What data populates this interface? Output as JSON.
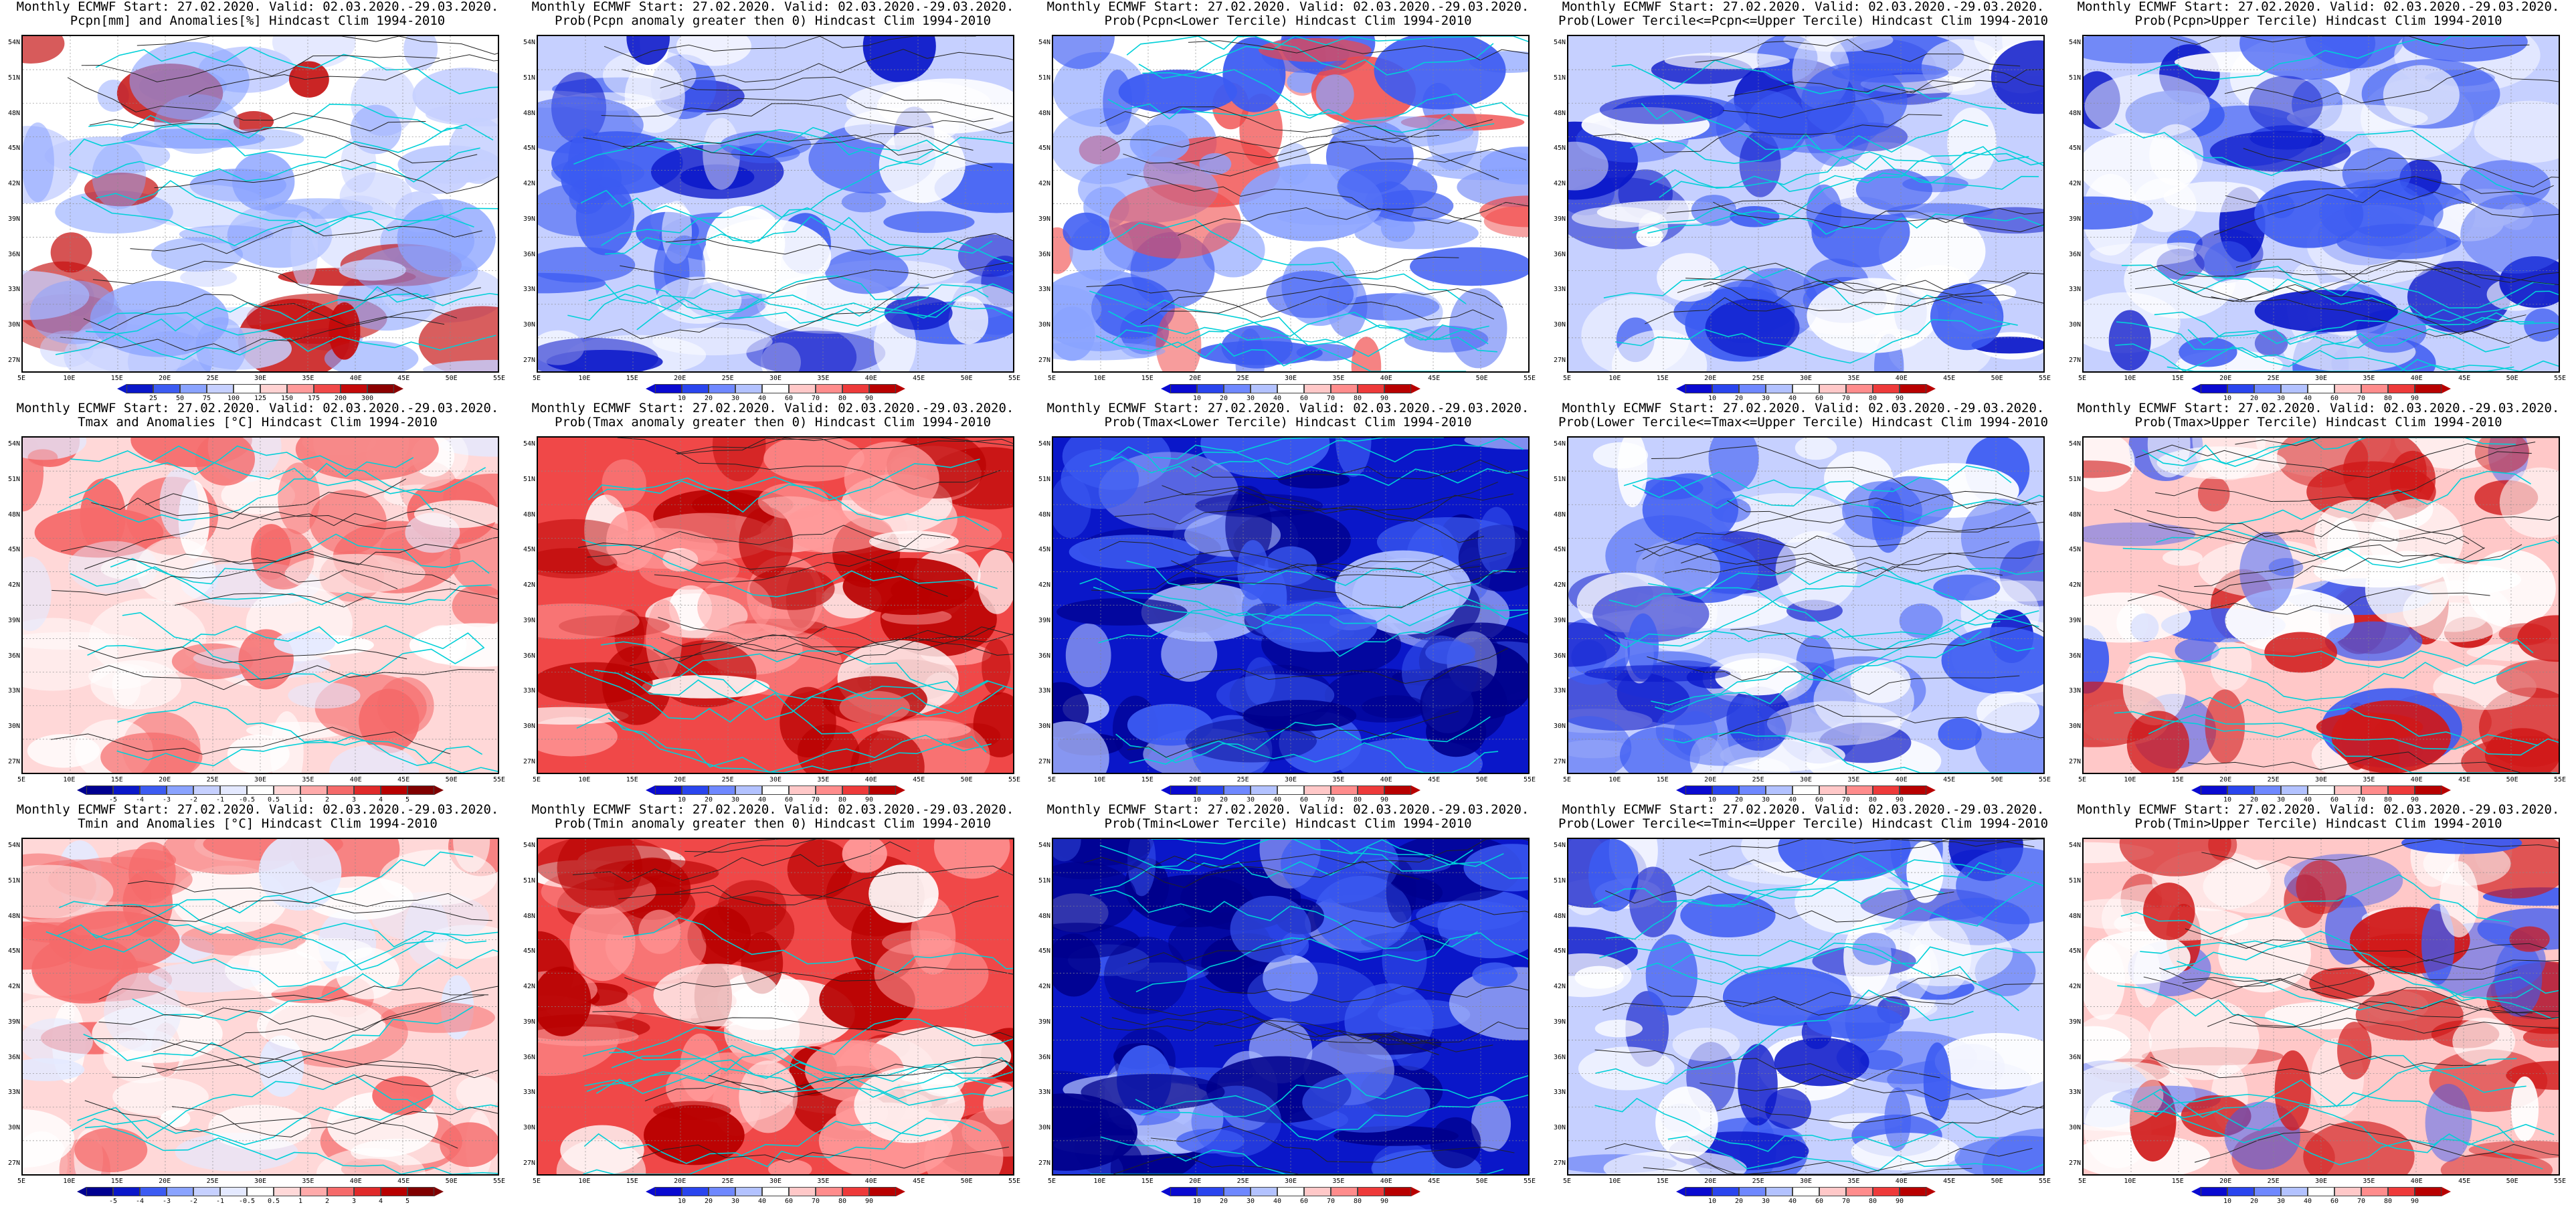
{
  "panels": [
    {
      "row": 0,
      "col": 0,
      "title1": "Monthly ECMWF Start: 27.02.2020. Valid: 02.03.2020.-29.03.2020.",
      "title2": "Pcpn[mm] and Anomalies[%] Hindcast Clim 1994-2010",
      "scheme": "precip",
      "cbar": "precip"
    },
    {
      "row": 0,
      "col": 1,
      "title1": "Monthly ECMWF Start: 27.02.2020. Valid: 02.03.2020.-29.03.2020.",
      "title2": "Prob(Pcpn anomaly greater then 0) Hindcast Clim 1994-2010",
      "scheme": "bluewhite",
      "cbar": "prob"
    },
    {
      "row": 0,
      "col": 2,
      "title1": "Monthly ECMWF Start: 27.02.2020. Valid: 02.03.2020.-29.03.2020.",
      "title2": "Prob(Pcpn<Lower Tercile) Hindcast Clim 1994-2010",
      "scheme": "bluered",
      "cbar": "prob"
    },
    {
      "row": 0,
      "col": 3,
      "title1": "Monthly ECMWF Start: 27.02.2020. Valid: 02.03.2020.-29.03.2020.",
      "title2": "Prob(Lower Tercile<=Pcpn<=Upper Tercile) Hindcast Clim 1994-2010",
      "scheme": "bluewhite",
      "cbar": "prob"
    },
    {
      "row": 0,
      "col": 4,
      "title1": "Monthly ECMWF Start: 27.02.2020. Valid: 02.03.2020.-29.03.2020.",
      "title2": "Prob(Pcpn>Upper Tercile) Hindcast Clim 1994-2010",
      "scheme": "bluewhite",
      "cbar": "prob"
    },
    {
      "row": 1,
      "col": 0,
      "title1": "Monthly ECMWF Start: 27.02.2020. Valid: 02.03.2020.-29.03.2020.",
      "title2": "Tmax and Anomalies [°C] Hindcast Clim 1994-2010",
      "scheme": "lightred",
      "cbar": "anom"
    },
    {
      "row": 1,
      "col": 1,
      "title1": "Monthly ECMWF Start: 27.02.2020. Valid: 02.03.2020.-29.03.2020.",
      "title2": "Prob(Tmax anomaly greater then 0) Hindcast Clim 1994-2010",
      "scheme": "red",
      "cbar": "prob"
    },
    {
      "row": 1,
      "col": 2,
      "title1": "Monthly ECMWF Start: 27.02.2020. Valid: 02.03.2020.-29.03.2020.",
      "title2": "Prob(Tmax<Lower Tercile) Hindcast Clim 1994-2010",
      "scheme": "darkblue",
      "cbar": "prob"
    },
    {
      "row": 1,
      "col": 3,
      "title1": "Monthly ECMWF Start: 27.02.2020. Valid: 02.03.2020.-29.03.2020.",
      "title2": "Prob(Lower Tercile<=Tmax<=Upper Tercile) Hindcast Clim 1994-2010",
      "scheme": "blue",
      "cbar": "prob"
    },
    {
      "row": 1,
      "col": 4,
      "title1": "Monthly ECMWF Start: 27.02.2020. Valid: 02.03.2020.-29.03.2020.",
      "title2": "Prob(Tmax>Upper Tercile) Hindcast Clim 1994-2010",
      "scheme": "redblue",
      "cbar": "prob"
    },
    {
      "row": 2,
      "col": 0,
      "title1": "Monthly ECMWF Start: 27.02.2020. Valid: 02.03.2020.-29.03.2020.",
      "title2": "Tmin and Anomalies [°C] Hindcast Clim 1994-2010",
      "scheme": "lightred",
      "cbar": "anom"
    },
    {
      "row": 2,
      "col": 1,
      "title1": "Monthly ECMWF Start: 27.02.2020. Valid: 02.03.2020.-29.03.2020.",
      "title2": "Prob(Tmin anomaly greater then 0) Hindcast Clim 1994-2010",
      "scheme": "red",
      "cbar": "prob"
    },
    {
      "row": 2,
      "col": 2,
      "title1": "Monthly ECMWF Start: 27.02.2020. Valid: 02.03.2020.-29.03.2020.",
      "title2": "Prob(Tmin<Lower Tercile) Hindcast Clim 1994-2010",
      "scheme": "darkblue",
      "cbar": "prob"
    },
    {
      "row": 2,
      "col": 3,
      "title1": "Monthly ECMWF Start: 27.02.2020. Valid: 02.03.2020.-29.03.2020.",
      "title2": "Prob(Lower Tercile<=Tmin<=Upper Tercile) Hindcast Clim 1994-2010",
      "scheme": "blue",
      "cbar": "prob"
    },
    {
      "row": 2,
      "col": 4,
      "title1": "Monthly ECMWF Start: 27.02.2020. Valid: 02.03.2020.-29.03.2020.",
      "title2": "Prob(Tmin>Upper Tercile) Hindcast Clim 1994-2010",
      "scheme": "redblue",
      "cbar": "prob"
    }
  ],
  "lat_labels": [
    "54N",
    "51N",
    "48N",
    "45N",
    "42N",
    "39N",
    "36N",
    "33N",
    "30N",
    "27N"
  ],
  "lon_labels": [
    "5E",
    "10E",
    "15E",
    "20E",
    "25E",
    "30E",
    "35E",
    "40E",
    "45E",
    "50E",
    "55E"
  ],
  "colorbars": {
    "precip": {
      "ticks": [
        "25",
        "50",
        "75",
        "100",
        "125",
        "150",
        "175",
        "200",
        "300"
      ],
      "colors": [
        "#0a17c9",
        "#3c5bf2",
        "#8aa3ff",
        "#c6d0ff",
        "#ffffff",
        "#ffd2d2",
        "#ff9a9a",
        "#f04848",
        "#c40a0a",
        "#8b0000"
      ]
    },
    "prob": {
      "ticks": [
        "10",
        "20",
        "30",
        "40",
        "60",
        "70",
        "80",
        "90"
      ],
      "colors": [
        "#0a0ad0",
        "#2a45ee",
        "#6f88ff",
        "#b3c2ff",
        "#ffffff",
        "#ffc8c8",
        "#ff8c8c",
        "#ee3a3a",
        "#b80000"
      ]
    },
    "anom": {
      "ticks": [
        "-5",
        "-4",
        "-3",
        "-2",
        "-1",
        "-0.5",
        "0.5",
        "1",
        "2",
        "3",
        "4",
        "5"
      ],
      "colors": [
        "#000090",
        "#0a17c9",
        "#3c5bf2",
        "#8aa3ff",
        "#c6d0ff",
        "#e4e9ff",
        "#ffffff",
        "#ffd8d8",
        "#ffaaaa",
        "#f56a6a",
        "#e02a2a",
        "#b80000",
        "#800000"
      ]
    }
  },
  "schemes": {
    "precip": {
      "base": "#ffffff",
      "a": "#8aa3ff",
      "b": "#c6d0ff",
      "c": "#c40a0a"
    },
    "bluewhite": {
      "base": "#c6d0ff",
      "a": "#3c5bf2",
      "b": "#ffffff",
      "c": "#0a17c9"
    },
    "bluered": {
      "base": "#ffffff",
      "a": "#3c5bf2",
      "b": "#8aa3ff",
      "c": "#f04848"
    },
    "lightred": {
      "base": "#ffd8d8",
      "a": "#f56a6a",
      "b": "#ffffff",
      "c": "#e4e9ff"
    },
    "red": {
      "base": "#f04848",
      "a": "#b80000",
      "b": "#ff9a9a",
      "c": "#ffffff"
    },
    "darkblue": {
      "base": "#0a17c9",
      "a": "#00008b",
      "b": "#3c5bf2",
      "c": "#b3c2ff"
    },
    "blue": {
      "base": "#c6d0ff",
      "a": "#3c5bf2",
      "b": "#ffffff",
      "c": "#0a17c9"
    },
    "redblue": {
      "base": "#ffc8c8",
      "a": "#d01818",
      "b": "#ffffff",
      "c": "#3c5bf2"
    }
  }
}
